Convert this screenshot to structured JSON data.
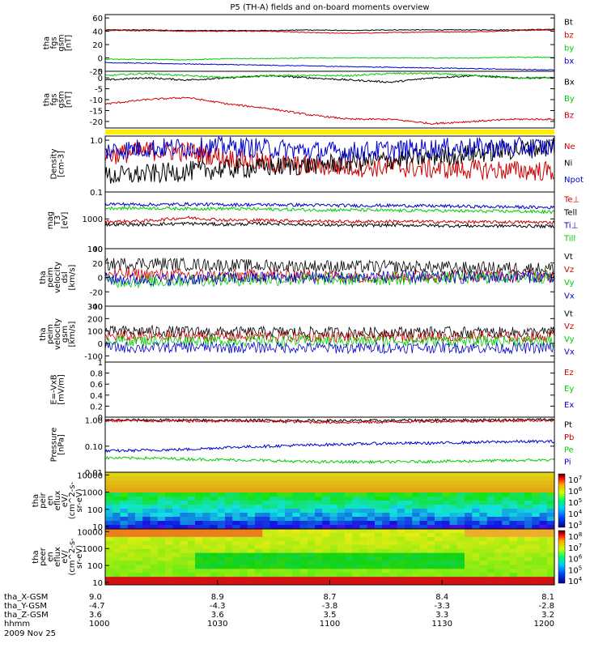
{
  "title": "P5 (TH-A) fields and on-board moments overview",
  "chart_data": [
    {
      "type": "line",
      "id": "fgs_gsm",
      "ylabel": [
        "tha",
        "fgs",
        "gsm",
        "[nT]"
      ],
      "yticks": [
        -20,
        0,
        20,
        40,
        60
      ],
      "ylim": [
        -20,
        65
      ],
      "series": [
        {
          "name": "Bt",
          "color": "#000000",
          "values": [
            42,
            42,
            41,
            41,
            41,
            42,
            41,
            42,
            42,
            42,
            42,
            43
          ]
        },
        {
          "name": "bz",
          "color": "#cc0000",
          "values": [
            41,
            41,
            40,
            40,
            40,
            38,
            37,
            38,
            39,
            39,
            41,
            42
          ]
        },
        {
          "name": "by",
          "color": "#00cc00",
          "values": [
            -2,
            -2,
            -3,
            -1,
            -1,
            0,
            0,
            0,
            0,
            0,
            1,
            1
          ]
        },
        {
          "name": "bx",
          "color": "#0000cc",
          "values": [
            -7,
            -8,
            -9,
            -10,
            -11,
            -12,
            -13,
            -14,
            -15,
            -16,
            -17,
            -18
          ]
        }
      ]
    },
    {
      "type": "line",
      "id": "fgs_gse",
      "ylabel": [
        "tha",
        "fgs",
        "gsm",
        "[nT]"
      ],
      "yticks": [
        -20,
        -15,
        -10,
        -5,
        0,
        5
      ],
      "ylim": [
        -23,
        3
      ],
      "series": [
        {
          "name": "Bx",
          "color": "#000000",
          "values": [
            -1,
            0,
            -1,
            0,
            1,
            0,
            -1,
            -2,
            0,
            1,
            0,
            0
          ]
        },
        {
          "name": "By",
          "color": "#00cc00",
          "values": [
            1,
            2,
            1,
            0,
            1,
            1,
            1,
            2,
            2,
            1,
            0,
            0
          ]
        },
        {
          "name": "Bz",
          "color": "#cc0000",
          "values": [
            -12,
            -10,
            -9,
            -12,
            -14,
            -17,
            -19,
            -19,
            -21,
            -20,
            -19,
            -19
          ]
        }
      ]
    },
    {
      "type": "line",
      "id": "density",
      "ylabel": [
        "Density",
        "[cm-3]"
      ],
      "ytick_labels": [
        "1.0",
        "0.1"
      ],
      "ylim": [
        0.1,
        1.2
      ],
      "log_scale": true,
      "series": [
        {
          "name": "Ne",
          "color": "#cc0000",
          "values": [
            0.5,
            0.62,
            0.6,
            0.45,
            0.35,
            0.32,
            0.3,
            0.3,
            0.28,
            0.27,
            0.26,
            0.25
          ]
        },
        {
          "name": "Ni",
          "color": "#000000",
          "values": [
            0.2,
            0.22,
            0.25,
            0.28,
            0.3,
            0.33,
            0.38,
            0.42,
            0.48,
            0.55,
            0.65,
            0.75
          ]
        },
        {
          "name": "Npot",
          "color": "#0000cc",
          "values": [
            0.62,
            0.7,
            0.72,
            0.75,
            0.7,
            0.62,
            0.6,
            0.65,
            0.7,
            0.72,
            0.72,
            0.74
          ]
        }
      ]
    },
    {
      "type": "line",
      "id": "temperature",
      "ylabel": [
        "mag",
        "T3",
        "[eV]"
      ],
      "ytick_labels": [
        "1000",
        "100"
      ],
      "ylim": [
        100,
        8000
      ],
      "log_scale": true,
      "series": [
        {
          "name": "Te⊥",
          "color": "#cc0000",
          "values": [
            800,
            850,
            1100,
            900,
            900,
            850,
            800,
            820,
            800,
            780,
            780,
            760
          ]
        },
        {
          "name": "Tell",
          "color": "#000000",
          "values": [
            650,
            650,
            700,
            650,
            700,
            650,
            600,
            620,
            600,
            580,
            580,
            560
          ]
        },
        {
          "name": "Ti⊥",
          "color": "#0000cc",
          "values": [
            3200,
            3000,
            3100,
            3000,
            3000,
            2900,
            2800,
            2800,
            2700,
            2600,
            2500,
            2400
          ]
        },
        {
          "name": "Till",
          "color": "#00cc00",
          "values": [
            2300,
            2300,
            2200,
            2200,
            2100,
            2000,
            2000,
            1900,
            1900,
            1800,
            1800,
            1700
          ]
        }
      ]
    },
    {
      "type": "line",
      "id": "velocity_dsl",
      "ylabel": [
        "tha",
        "peim",
        "velocity",
        "dsl",
        "[km/s]"
      ],
      "yticks": [
        -40,
        -20,
        0,
        20,
        40
      ],
      "ylim": [
        -40,
        40
      ],
      "series": [
        {
          "name": "Vt",
          "color": "#000000",
          "values": [
            18,
            20,
            18,
            17,
            16,
            16,
            15,
            15,
            14,
            13,
            13,
            12
          ]
        },
        {
          "name": "Vz",
          "color": "#cc0000",
          "values": [
            5,
            4,
            3,
            2,
            4,
            3,
            2,
            1,
            2,
            3,
            2,
            2
          ]
        },
        {
          "name": "Vy",
          "color": "#00cc00",
          "values": [
            -5,
            -6,
            -4,
            -3,
            -3,
            -2,
            -3,
            -2,
            -1,
            0,
            0,
            1
          ]
        },
        {
          "name": "Vx",
          "color": "#0000cc",
          "values": [
            -2,
            -3,
            -2,
            -1,
            0,
            0,
            0,
            1,
            0,
            0,
            1,
            1
          ]
        }
      ]
    },
    {
      "type": "line",
      "id": "velocity_gsm",
      "ylabel": [
        "tha",
        "peim",
        "velocity",
        "gsm",
        "[km/s]"
      ],
      "yticks": [
        -100,
        0,
        100,
        200,
        300
      ],
      "ylim": [
        -150,
        300
      ],
      "series": [
        {
          "name": "Vt",
          "color": "#000000",
          "values": [
            95,
            100,
            95,
            90,
            92,
            90,
            88,
            90,
            92,
            90,
            88,
            90
          ]
        },
        {
          "name": "Vz",
          "color": "#cc0000",
          "values": [
            60,
            55,
            60,
            55,
            58,
            55,
            52,
            55,
            58,
            55,
            52,
            55
          ]
        },
        {
          "name": "Vy",
          "color": "#00cc00",
          "values": [
            25,
            22,
            25,
            20,
            22,
            20,
            18,
            22,
            20,
            18,
            20,
            18
          ]
        },
        {
          "name": "Vx",
          "color": "#0000cc",
          "values": [
            -30,
            -35,
            -30,
            -35,
            -32,
            -35,
            -38,
            -35,
            -32,
            -35,
            -38,
            -35
          ]
        }
      ]
    },
    {
      "type": "line",
      "id": "e_field",
      "ylabel": [
        "E=-VxB",
        "[mV/m]"
      ],
      "yticks": [
        0.0,
        0.2,
        0.4,
        0.6,
        0.8,
        1.0
      ],
      "ylim": [
        0,
        1
      ],
      "series": [
        {
          "name": "Ez",
          "color": "#cc0000",
          "values": []
        },
        {
          "name": "Ey",
          "color": "#00cc00",
          "values": []
        },
        {
          "name": "Ex",
          "color": "#0000cc",
          "values": []
        }
      ]
    },
    {
      "type": "line",
      "id": "pressure",
      "ylabel": [
        "Pressure",
        "[nPa]"
      ],
      "ytick_labels": [
        "1.00",
        "0.10",
        "0.01"
      ],
      "ylim": [
        0.01,
        1.3
      ],
      "log_scale": true,
      "series": [
        {
          "name": "Pt",
          "color": "#000000",
          "values": [
            1.0,
            1.0,
            0.98,
            0.98,
            0.97,
            0.95,
            0.95,
            0.96,
            1.0,
            1.0,
            1.02,
            1.05
          ]
        },
        {
          "name": "Pb",
          "color": "#cc0000",
          "values": [
            0.95,
            0.95,
            0.92,
            0.92,
            0.9,
            0.85,
            0.82,
            0.85,
            0.9,
            0.92,
            0.95,
            1.0
          ]
        },
        {
          "name": "Pe",
          "color": "#00cc00",
          "values": [
            0.035,
            0.035,
            0.032,
            0.03,
            0.028,
            0.025,
            0.025,
            0.025,
            0.026,
            0.027,
            0.028,
            0.03
          ]
        },
        {
          "name": "Pi",
          "color": "#0000cc",
          "values": [
            0.065,
            0.07,
            0.075,
            0.09,
            0.1,
            0.11,
            0.12,
            0.13,
            0.13,
            0.14,
            0.15,
            0.15
          ]
        }
      ]
    },
    {
      "type": "heatmap",
      "id": "peir_spec",
      "ylabel": [
        "tha",
        "peir",
        "en",
        "eflux",
        "eV/",
        "(cm^2-s-",
        "sr-eV)"
      ],
      "ytick_labels": [
        "10000",
        "1000",
        "100",
        "10"
      ],
      "colorbar_labels": [
        "10^7",
        "10^6",
        "10^5",
        "10^4",
        "10^3"
      ]
    },
    {
      "type": "heatmap",
      "id": "peer_spec",
      "ylabel": [
        "tha",
        "peer",
        "en",
        "eflux",
        "eV/",
        "(cm^2-s-",
        "sr-eV)"
      ],
      "ytick_labels": [
        "10000",
        "1000",
        "100",
        "10"
      ],
      "colorbar_labels": [
        "10^8",
        "10^7",
        "10^6",
        "10^5",
        "10^4"
      ]
    }
  ],
  "x_axis": {
    "rows": [
      {
        "label": "tha_X-GSM",
        "values": [
          "9.0",
          "8.9",
          "8.7",
          "8.4",
          "8.1"
        ]
      },
      {
        "label": "tha_Y-GSM",
        "values": [
          "-4.7",
          "-4.3",
          "-3.8",
          "-3.3",
          "-2.8"
        ]
      },
      {
        "label": "tha_Z-GSM",
        "values": [
          "3.6",
          "3.6",
          "3.5",
          "3.3",
          "3.2"
        ]
      },
      {
        "label": "hhmm",
        "values": [
          "1000",
          "1030",
          "1100",
          "1130",
          "1200"
        ]
      }
    ],
    "date": "2009 Nov 25"
  }
}
